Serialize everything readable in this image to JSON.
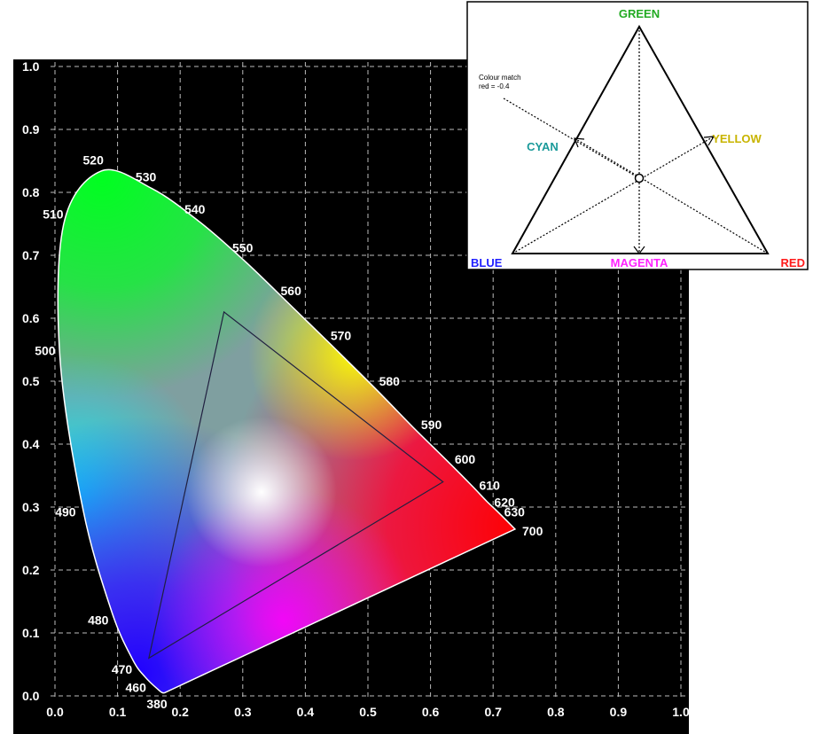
{
  "chart_data": {
    "type": "scatter",
    "title": "",
    "xlabel": "",
    "ylabel": "",
    "xlim": [
      0,
      1.0
    ],
    "ylim": [
      0,
      1.0
    ],
    "grid": true,
    "x_ticks": [
      "0.0",
      "0.1",
      "0.2",
      "0.3",
      "0.4",
      "0.5",
      "0.6",
      "0.7",
      "0.8",
      "0.9",
      "1.0"
    ],
    "y_ticks": [
      "0.0",
      "0.1",
      "0.2",
      "0.3",
      "0.4",
      "0.5",
      "0.6",
      "0.7",
      "0.8",
      "0.9",
      "1.0"
    ],
    "locus": [
      [
        0.175,
        0.005
      ],
      [
        0.172,
        0.005
      ],
      [
        0.166,
        0.009
      ],
      [
        0.144,
        0.03
      ],
      [
        0.124,
        0.058
      ],
      [
        0.091,
        0.133
      ],
      [
        0.045,
        0.295
      ],
      [
        0.008,
        0.538
      ],
      [
        0.014,
        0.75
      ],
      [
        0.074,
        0.834
      ],
      [
        0.155,
        0.806
      ],
      [
        0.23,
        0.754
      ],
      [
        0.302,
        0.692
      ],
      [
        0.373,
        0.624
      ],
      [
        0.444,
        0.555
      ],
      [
        0.513,
        0.487
      ],
      [
        0.575,
        0.424
      ],
      [
        0.627,
        0.373
      ],
      [
        0.666,
        0.334
      ],
      [
        0.69,
        0.309
      ],
      [
        0.706,
        0.294
      ],
      [
        0.735,
        0.265
      ]
    ],
    "wavelength_labels": [
      {
        "text": "380",
        "x": 0.175,
        "y": 0.005
      },
      {
        "text": "460",
        "x": 0.144,
        "y": 0.03
      },
      {
        "text": "470",
        "x": 0.124,
        "y": 0.058
      },
      {
        "text": "480",
        "x": 0.091,
        "y": 0.133
      },
      {
        "text": "490",
        "x": 0.045,
        "y": 0.295
      },
      {
        "text": "500",
        "x": 0.008,
        "y": 0.538
      },
      {
        "text": "510",
        "x": 0.014,
        "y": 0.75
      },
      {
        "text": "520",
        "x": 0.074,
        "y": 0.834
      },
      {
        "text": "530",
        "x": 0.155,
        "y": 0.806
      },
      {
        "text": "540",
        "x": 0.23,
        "y": 0.754
      },
      {
        "text": "550",
        "x": 0.302,
        "y": 0.692
      },
      {
        "text": "560",
        "x": 0.373,
        "y": 0.624
      },
      {
        "text": "570",
        "x": 0.444,
        "y": 0.555
      },
      {
        "text": "580",
        "x": 0.513,
        "y": 0.487
      },
      {
        "text": "590",
        "x": 0.575,
        "y": 0.424
      },
      {
        "text": "600",
        "x": 0.627,
        "y": 0.373
      },
      {
        "text": "610",
        "x": 0.666,
        "y": 0.334
      },
      {
        "text": "620",
        "x": 0.69,
        "y": 0.309
      },
      {
        "text": "630",
        "x": 0.706,
        "y": 0.294
      },
      {
        "text": "700",
        "x": 0.735,
        "y": 0.265
      }
    ],
    "gamut_triangle": [
      [
        0.27,
        0.61
      ],
      [
        0.62,
        0.34
      ],
      [
        0.15,
        0.06
      ]
    ],
    "colors": {
      "background": "#000000",
      "grid": "#bbbbbb",
      "text": "#ffffff",
      "locus_outline": "#ffffff",
      "triangle": "#202040"
    }
  },
  "inset": {
    "labels": {
      "green": "GREEN",
      "cyan": "CYAN",
      "yellow": "YELLOW",
      "blue": "BLUE",
      "magenta": "MAGENTA",
      "red": "RED"
    },
    "note_line1": "Colour match",
    "note_line2": "red = -0.4",
    "colors": {
      "green": "#22aa22",
      "cyan": "#1a9a9a",
      "yellow": "#c8b400",
      "blue": "#1f1fff",
      "magenta": "#ff22ff",
      "red": "#ff1a1a"
    }
  }
}
